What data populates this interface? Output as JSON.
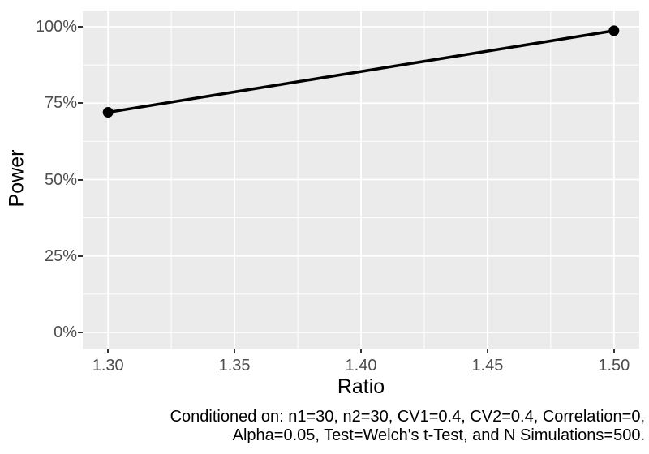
{
  "chart_data": {
    "type": "line",
    "title": "",
    "xlabel": "Ratio",
    "ylabel": "Power",
    "x": [
      1.3,
      1.5
    ],
    "y_percent": [
      72,
      98.7
    ],
    "x_domain": [
      1.29,
      1.51
    ],
    "y_domain_percent": [
      -5.3,
      105.3
    ],
    "x_ticks": {
      "values": [
        1.3,
        1.35,
        1.4,
        1.45,
        1.5
      ],
      "labels": [
        "1.30",
        "1.35",
        "1.40",
        "1.45",
        "1.50"
      ]
    },
    "y_ticks": {
      "values": [
        0,
        25,
        50,
        75,
        100
      ],
      "labels": [
        "0%",
        "25%",
        "50%",
        "75%",
        "100%"
      ]
    },
    "x_minor": [
      1.325,
      1.375,
      1.425,
      1.475
    ],
    "y_minor": [
      12.5,
      37.5,
      62.5,
      87.5
    ],
    "grid": "on",
    "legend": "none",
    "colors": {
      "panel_background": "#EBEBEB",
      "gridline": "#FFFFFF",
      "series_line": "#000000",
      "point": "#000000",
      "tick_label": "#4D4D4D",
      "tick_mark": "#333333",
      "axis_title": "#000000",
      "caption_text": "#000000"
    }
  },
  "caption": {
    "lines": [
      "Conditioned on: n1=30, n2=30, CV1=0.4, CV2=0.4, Correlation=0,",
      "Alpha=0.05, Test=Welch's t-Test, and N Simulations=500."
    ]
  }
}
